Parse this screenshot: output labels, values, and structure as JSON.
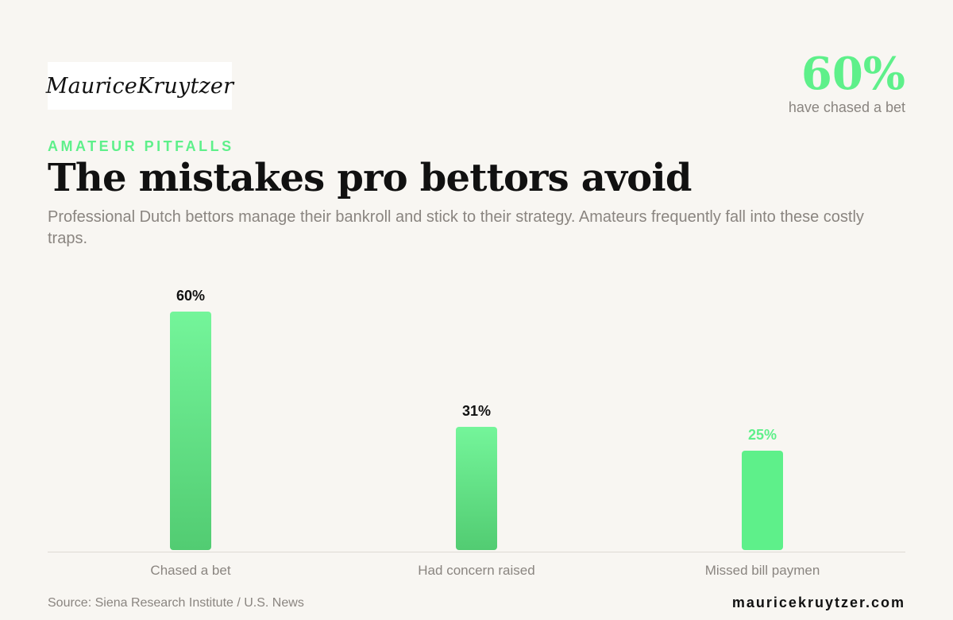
{
  "brand": {
    "logo_text": "MauriceKruytzer",
    "website": "mauricekruytzer.com"
  },
  "highlight": {
    "value": "60%",
    "label": "have chased a bet"
  },
  "header": {
    "eyebrow": "AMATEUR PITFALLS",
    "title": "The mistakes pro bettors avoid",
    "subtitle": "Professional Dutch bettors manage their bankroll and stick to their strategy. Amateurs frequently fall into these costly traps."
  },
  "footer": {
    "source": "Source: Siena Research Institute / U.S. News"
  },
  "colors": {
    "accent": "#5ef08a",
    "bar_top": "#74f59a",
    "bar_bottom": "#52cc72",
    "text_dark": "#111111",
    "text_muted": "#8a8580",
    "axis": "#dedad4"
  },
  "chart_data": {
    "type": "bar",
    "categories": [
      "Chased a bet",
      "Had concern raised",
      "Missed bill paymen"
    ],
    "values": [
      60,
      31,
      25
    ],
    "value_labels": [
      "60%",
      "31%",
      "25%"
    ],
    "ylim": [
      0,
      60
    ],
    "grid": false,
    "legend": "none",
    "title": "",
    "xlabel": "",
    "ylabel": ""
  }
}
